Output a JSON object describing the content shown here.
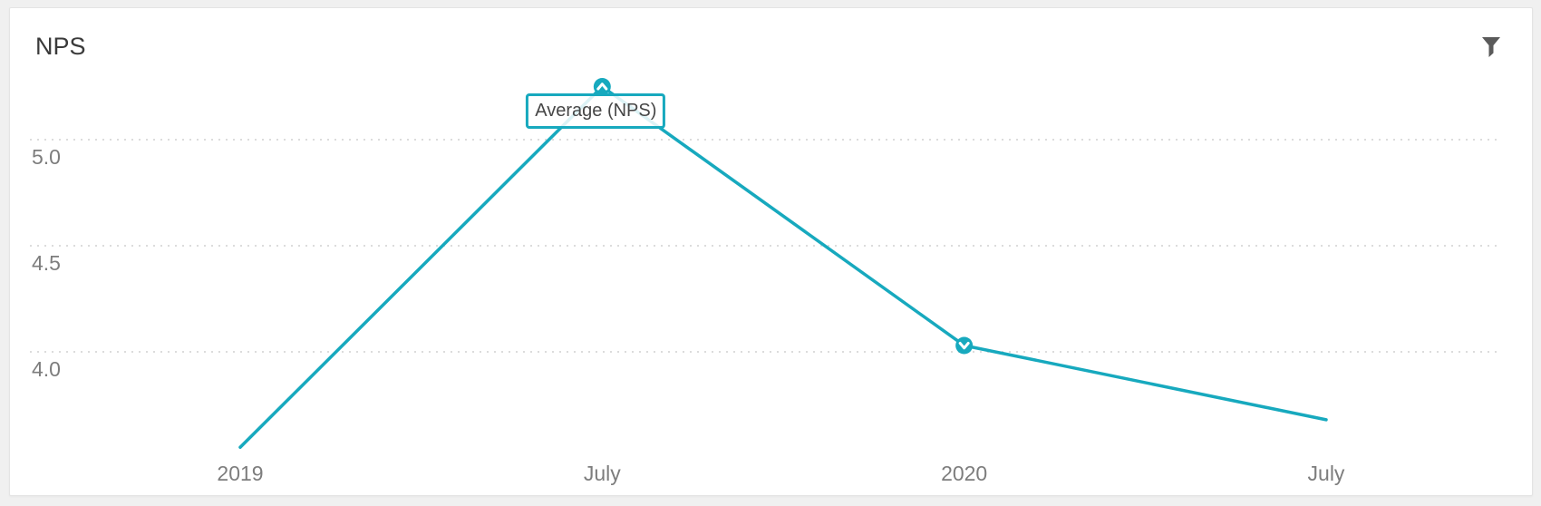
{
  "card": {
    "title": "NPS"
  },
  "toolbar": {
    "filter_icon": "funnel"
  },
  "colors": {
    "accent": "#17a9be",
    "grid": "#dcdcdc",
    "axis_label": "#7d7d7d",
    "title": "#3a3a3a",
    "icon": "#5a5a5a",
    "tooltip_text": "#464646"
  },
  "tooltip": {
    "label": "Average (NPS)",
    "point_index": 1
  },
  "chart_data": {
    "type": "line",
    "title": "NPS",
    "categories": [
      "2019",
      "July",
      "2020",
      "July"
    ],
    "series": [
      {
        "name": "Average (NPS)",
        "values": [
          3.55,
          5.25,
          4.03,
          3.68
        ]
      }
    ],
    "yticks": [
      {
        "label": "5.0",
        "value": 5.0
      },
      {
        "label": "4.5",
        "value": 4.5
      },
      {
        "label": "4.0",
        "value": 4.0
      }
    ],
    "ylim": [
      3.3,
      5.45
    ],
    "xlabel": "",
    "ylabel": "",
    "grid": "dotted-horizontal",
    "legend": "none",
    "markers": [
      {
        "index": 1,
        "direction": "up"
      },
      {
        "index": 2,
        "direction": "down"
      }
    ]
  }
}
